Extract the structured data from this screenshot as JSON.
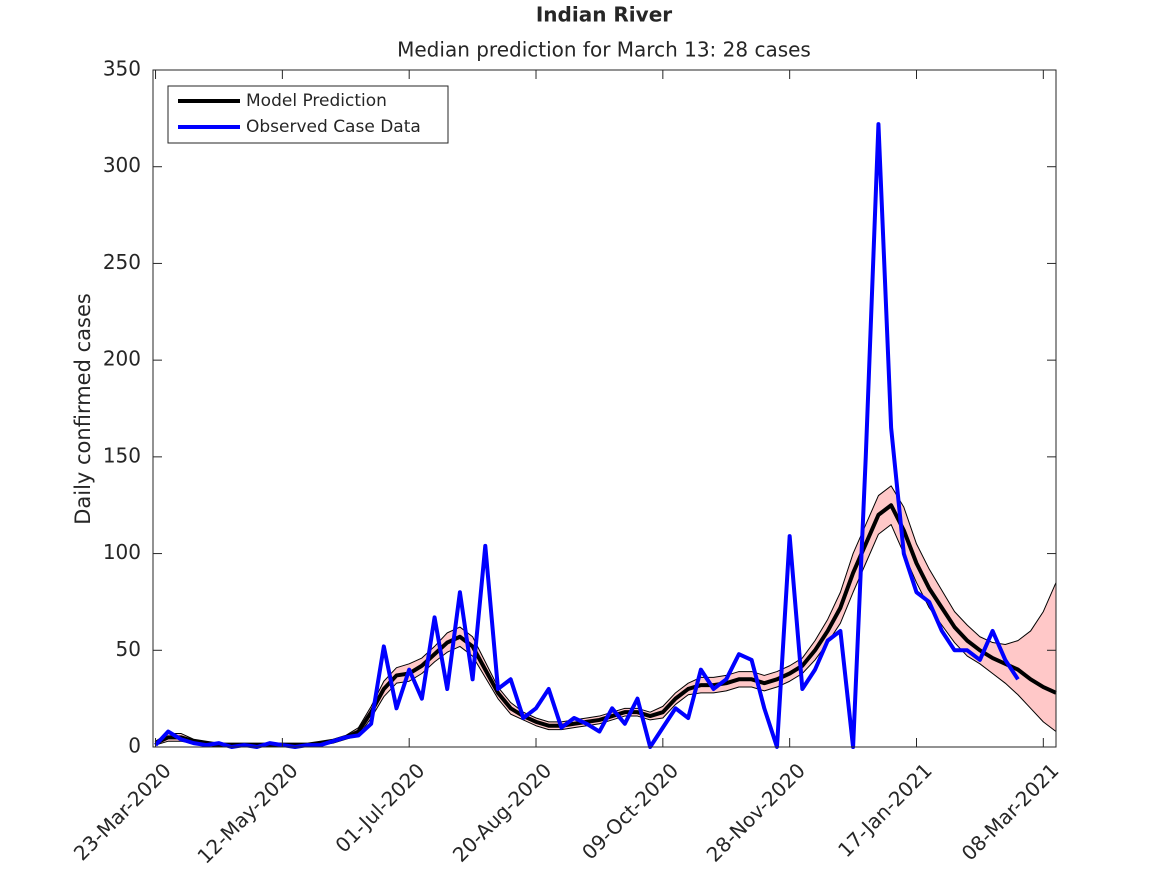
{
  "chart_data": {
    "type": "line",
    "title": "Indian River",
    "subtitle": "Median prediction for March 13: 28 cases",
    "y_label": "Daily confirmed cases",
    "x": [
      "2020-03-23",
      "2020-03-28",
      "2020-04-02",
      "2020-04-07",
      "2020-04-12",
      "2020-04-17",
      "2020-04-22",
      "2020-04-27",
      "2020-05-02",
      "2020-05-07",
      "2020-05-12",
      "2020-05-17",
      "2020-05-22",
      "2020-05-27",
      "2020-06-01",
      "2020-06-06",
      "2020-06-11",
      "2020-06-16",
      "2020-06-21",
      "2020-06-26",
      "2020-07-01",
      "2020-07-06",
      "2020-07-11",
      "2020-07-16",
      "2020-07-21",
      "2020-07-26",
      "2020-07-31",
      "2020-08-05",
      "2020-08-10",
      "2020-08-15",
      "2020-08-20",
      "2020-08-25",
      "2020-08-30",
      "2020-09-04",
      "2020-09-09",
      "2020-09-14",
      "2020-09-19",
      "2020-09-24",
      "2020-09-29",
      "2020-10-04",
      "2020-10-09",
      "2020-10-14",
      "2020-10-19",
      "2020-10-24",
      "2020-10-29",
      "2020-11-03",
      "2020-11-08",
      "2020-11-13",
      "2020-11-18",
      "2020-11-23",
      "2020-11-28",
      "2020-12-03",
      "2020-12-08",
      "2020-12-13",
      "2020-12-18",
      "2020-12-23",
      "2020-12-28",
      "2021-01-02",
      "2021-01-07",
      "2021-01-12",
      "2021-01-17",
      "2021-01-22",
      "2021-01-27",
      "2021-02-01",
      "2021-02-06",
      "2021-02-11",
      "2021-02-16",
      "2021-02-21",
      "2021-02-26",
      "2021-03-03",
      "2021-03-08",
      "2021-03-13"
    ],
    "band": {
      "color": "#ffc8c8",
      "lower": [
        1,
        3,
        3,
        2,
        1,
        0,
        0,
        0,
        0,
        0,
        0,
        0,
        0,
        1,
        2,
        4,
        6,
        15,
        26,
        33,
        34,
        38,
        44,
        49,
        52,
        47,
        36,
        25,
        17,
        14,
        11,
        9,
        9,
        10,
        11,
        12,
        14,
        16,
        16,
        14,
        15,
        22,
        27,
        28,
        28,
        29,
        31,
        31,
        29,
        31,
        34,
        38,
        45,
        54,
        64,
        80,
        95,
        110,
        115,
        100,
        85,
        72,
        63,
        54,
        47,
        43,
        38,
        33,
        27,
        20,
        13,
        8
      ],
      "upper": [
        3,
        7,
        7,
        4,
        3,
        2,
        2,
        2,
        2,
        2,
        2,
        2,
        2,
        3,
        4,
        6,
        10,
        21,
        34,
        41,
        43,
        46,
        52,
        59,
        62,
        57,
        44,
        31,
        23,
        18,
        15,
        13,
        13,
        14,
        15,
        16,
        18,
        20,
        20,
        18,
        21,
        28,
        33,
        36,
        36,
        37,
        39,
        39,
        37,
        39,
        42,
        46,
        55,
        66,
        80,
        100,
        115,
        130,
        135,
        124,
        105,
        92,
        81,
        70,
        63,
        57,
        54,
        53,
        55,
        60,
        70,
        85
      ]
    },
    "series": [
      {
        "name": "Model Prediction",
        "color": "#000000",
        "values": [
          2,
          5,
          5,
          3,
          2,
          1,
          1,
          1,
          1,
          1,
          1,
          1,
          1,
          2,
          3,
          5,
          8,
          18,
          30,
          37,
          38,
          42,
          48,
          54,
          57,
          52,
          40,
          28,
          20,
          16,
          13,
          11,
          11,
          12,
          13,
          14,
          16,
          18,
          18,
          16,
          18,
          25,
          30,
          32,
          32,
          33,
          35,
          35,
          33,
          35,
          38,
          42,
          50,
          60,
          72,
          90,
          105,
          120,
          125,
          112,
          95,
          82,
          72,
          62,
          55,
          50,
          46,
          43,
          40,
          35,
          31,
          28
        ]
      },
      {
        "name": "Observed Case Data",
        "color": "#0000ff",
        "values": [
          1,
          8,
          4,
          2,
          1,
          2,
          0,
          1,
          0,
          2,
          1,
          0,
          1,
          1,
          3,
          5,
          6,
          12,
          52,
          20,
          40,
          25,
          67,
          30,
          80,
          35,
          104,
          30,
          35,
          15,
          20,
          30,
          10,
          15,
          12,
          8,
          20,
          12,
          25,
          0,
          10,
          20,
          15,
          40,
          30,
          35,
          48,
          45,
          20,
          0,
          109,
          30,
          40,
          55,
          60,
          0,
          150,
          322,
          165,
          100,
          80,
          75,
          60,
          50,
          50,
          45,
          60,
          45,
          35,
          null,
          null,
          null
        ]
      }
    ],
    "xlim": [
      "2020-03-22",
      "2021-03-13"
    ],
    "xticks": [
      {
        "value": "2020-03-23",
        "label": "23-Mar-2020"
      },
      {
        "value": "2020-05-12",
        "label": "12-May-2020"
      },
      {
        "value": "2020-07-01",
        "label": "01-Jul-2020"
      },
      {
        "value": "2020-08-20",
        "label": "20-Aug-2020"
      },
      {
        "value": "2020-10-09",
        "label": "09-Oct-2020"
      },
      {
        "value": "2020-11-28",
        "label": "28-Nov-2020"
      },
      {
        "value": "2021-01-17",
        "label": "17-Jan-2021"
      },
      {
        "value": "2021-03-08",
        "label": "08-Mar-2021"
      }
    ],
    "ylim": [
      0,
      350
    ],
    "yticks": [
      0,
      50,
      100,
      150,
      200,
      250,
      300,
      350
    ],
    "legend": "top-left"
  }
}
